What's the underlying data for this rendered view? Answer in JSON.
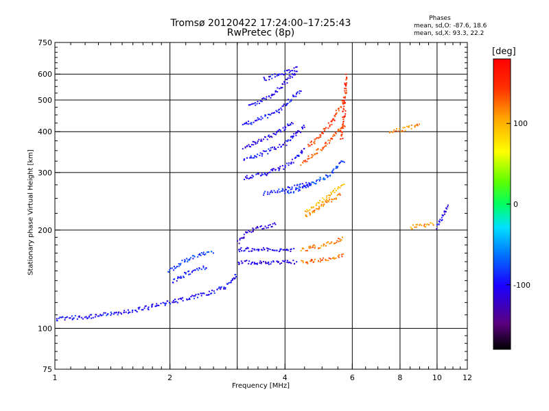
{
  "title": {
    "line1": "Tromsø 20120422 17:24:00–17:25:43",
    "line2": "RwPretec (8p)"
  },
  "phase_stats": {
    "title": "Phases",
    "line1": "mean, sd,O: -87.6, 18.6",
    "line2": "mean, sd,X:  93.3, 22.2"
  },
  "colorbar": {
    "unit_label": "[deg]",
    "ticks": [
      {
        "value": 100,
        "label": "100"
      },
      {
        "value": 0,
        "label": "0"
      },
      {
        "value": -100,
        "label": "-100"
      }
    ],
    "range": [
      -180,
      180
    ],
    "colormap": "rainbow (black-purple-blue-cyan-green-yellow-orange-red)"
  },
  "chart_data": {
    "type": "scatter",
    "title": "Tromsø 20120422 17:24:00–17:25:43",
    "subtitle": "RwPretec (8p)",
    "xlabel": "Frequency [MHz]",
    "ylabel": "Stationary phase Virtual Height [km]",
    "x_scale": "log",
    "y_scale": "log",
    "xlim": [
      1,
      12
    ],
    "ylim": [
      75,
      750
    ],
    "x_ticks": [
      {
        "value": 1,
        "label": "1"
      },
      {
        "value": 2,
        "label": "2"
      },
      {
        "value": 4,
        "label": "4"
      },
      {
        "value": 6,
        "label": "6"
      },
      {
        "value": 8,
        "label": "8"
      },
      {
        "value": 10,
        "label": "10"
      },
      {
        "value": 12,
        "label": "12"
      }
    ],
    "y_ticks": [
      {
        "value": 75,
        "label": "75"
      },
      {
        "value": 100,
        "label": "100"
      },
      {
        "value": 200,
        "label": "200"
      },
      {
        "value": 300,
        "label": "300"
      },
      {
        "value": 400,
        "label": "400"
      },
      {
        "value": 500,
        "label": "500"
      },
      {
        "value": 600,
        "label": "600"
      },
      {
        "value": 750,
        "label": "750"
      }
    ],
    "grid": true,
    "grid_x": [
      2,
      3,
      4,
      6,
      8,
      10
    ],
    "grid_y": [
      100,
      200,
      300,
      400,
      500,
      600
    ],
    "color_by": "phase [deg]",
    "traces": [
      {
        "x": [
          1.0,
          1.3,
          1.6,
          1.9,
          2.2,
          2.6,
          2.85,
          2.98
        ],
        "y": [
          107,
          110,
          114,
          119,
          124,
          130,
          137,
          148
        ],
        "phase": -100
      },
      {
        "x": [
          1.98,
          2.15,
          2.35,
          2.6
        ],
        "y": [
          150,
          160,
          168,
          172
        ],
        "phase": -80
      },
      {
        "x": [
          2.02,
          2.2,
          2.5
        ],
        "y": [
          140,
          148,
          155
        ],
        "phase": -95
      },
      {
        "x": [
          3.0,
          3.5,
          4.0,
          4.3
        ],
        "y": [
          160,
          160,
          160,
          160
        ],
        "phase": -110
      },
      {
        "x": [
          3.0,
          3.6,
          4.2
        ],
        "y": [
          175,
          175,
          175
        ],
        "phase": -105
      },
      {
        "x": [
          4.4,
          5.0,
          5.7
        ],
        "y": [
          160,
          163,
          168
        ],
        "phase": 130
      },
      {
        "x": [
          4.4,
          5.0,
          5.7
        ],
        "y": [
          175,
          180,
          190
        ],
        "phase": 120
      },
      {
        "x": [
          3.1,
          3.6,
          4.1,
          4.5
        ],
        "y": [
          290,
          300,
          320,
          360
        ],
        "phase": -105
      },
      {
        "x": [
          3.1,
          3.5,
          4.0,
          4.5
        ],
        "y": [
          330,
          345,
          370,
          420
        ],
        "phase": -100
      },
      {
        "x": [
          3.1,
          3.6,
          4.2
        ],
        "y": [
          360,
          385,
          430
        ],
        "phase": -110
      },
      {
        "x": [
          3.1,
          3.8,
          4.4
        ],
        "y": [
          420,
          460,
          540
        ],
        "phase": -95
      },
      {
        "x": [
          3.2,
          3.7,
          4.3
        ],
        "y": [
          480,
          520,
          620
        ],
        "phase": -105
      },
      {
        "x": [
          3.5,
          4.0,
          4.3
        ],
        "y": [
          580,
          610,
          630
        ],
        "phase": -100
      },
      {
        "x": [
          3.5,
          4.1,
          4.7
        ],
        "y": [
          260,
          270,
          280
        ],
        "phase": -90
      },
      {
        "x": [
          4.0,
          4.6,
          5.2,
          5.7
        ],
        "y": [
          260,
          275,
          295,
          330
        ],
        "phase": -80
      },
      {
        "x": [
          4.4,
          5.0,
          5.7
        ],
        "y": [
          320,
          360,
          420
        ],
        "phase": 125
      },
      {
        "x": [
          4.6,
          5.2,
          5.7
        ],
        "y": [
          360,
          420,
          500
        ],
        "phase": 140
      },
      {
        "x": [
          4.5,
          5.0,
          5.6
        ],
        "y": [
          220,
          240,
          260
        ],
        "phase": 120
      },
      {
        "x": [
          4.5,
          5.1,
          5.7
        ],
        "y": [
          230,
          250,
          280
        ],
        "phase": 95
      },
      {
        "x": [
          5.6,
          5.7,
          5.75
        ],
        "y": [
          380,
          480,
          600
        ],
        "phase": 150
      },
      {
        "x": [
          3.0,
          3.2,
          3.8
        ],
        "y": [
          185,
          200,
          210
        ],
        "phase": -115
      },
      {
        "x": [
          8.5,
          9.2,
          9.8
        ],
        "y": [
          205,
          208,
          210
        ],
        "phase": 110
      },
      {
        "x": [
          10.0,
          10.3,
          10.6
        ],
        "y": [
          205,
          220,
          240
        ],
        "phase": -110
      },
      {
        "x": [
          7.5,
          8.2,
          9.0
        ],
        "y": [
          400,
          410,
          420
        ],
        "phase": 120
      }
    ]
  }
}
